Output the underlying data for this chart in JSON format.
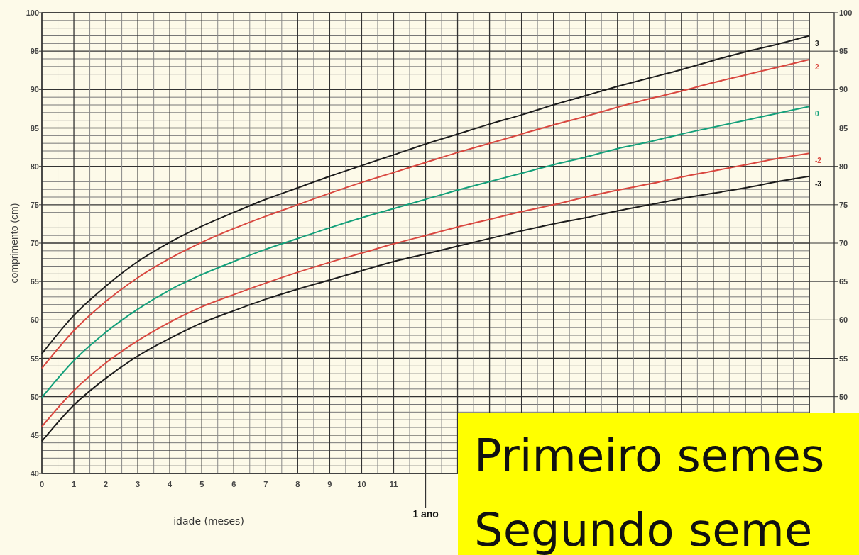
{
  "chart_data": {
    "type": "line",
    "xlabel": "idade (meses)",
    "ylabel": "comprimento (cm)",
    "x": [
      0,
      1,
      2,
      3,
      4,
      5,
      6,
      7,
      8,
      9,
      10,
      11,
      12,
      13,
      14,
      15,
      16,
      17,
      18,
      19,
      20,
      21,
      22,
      23,
      24
    ],
    "xlim": [
      0,
      24
    ],
    "xticks": [
      0,
      1,
      2,
      3,
      4,
      5,
      6,
      7,
      8,
      9,
      10,
      11
    ],
    "ref_lines": [
      {
        "axis": "x",
        "value": 12,
        "label": "1 ano"
      }
    ],
    "ylim": [
      40,
      100
    ],
    "yticks": [
      40,
      45,
      50,
      55,
      60,
      65,
      70,
      75,
      80,
      85,
      90,
      95,
      100
    ],
    "y2lim": [
      40,
      100
    ],
    "y2ticks": [
      50,
      55,
      60,
      65,
      70,
      75,
      80,
      85,
      90,
      95,
      100
    ],
    "grid": true,
    "marker": "none",
    "line_style": "solid",
    "series": [
      {
        "name": "3",
        "color": "#1c1c1c",
        "values": [
          55.6,
          60.6,
          64.4,
          67.6,
          70.1,
          72.2,
          74.0,
          75.7,
          77.2,
          78.7,
          80.1,
          81.5,
          82.9,
          84.2,
          85.5,
          86.7,
          88.0,
          89.2,
          90.4,
          91.5,
          92.6,
          93.8,
          94.9,
          95.9,
          97.0
        ]
      },
      {
        "name": "2",
        "color": "#d9473f",
        "values": [
          53.7,
          58.6,
          62.4,
          65.5,
          68.0,
          70.1,
          71.9,
          73.5,
          75.0,
          76.5,
          77.9,
          79.2,
          80.5,
          81.8,
          83.0,
          84.2,
          85.4,
          86.5,
          87.7,
          88.8,
          89.8,
          90.9,
          91.9,
          92.9,
          93.9
        ]
      },
      {
        "name": "0",
        "color": "#13a07a",
        "values": [
          49.9,
          54.7,
          58.4,
          61.4,
          63.9,
          65.9,
          67.6,
          69.2,
          70.6,
          72.0,
          73.3,
          74.5,
          75.7,
          76.9,
          78.0,
          79.1,
          80.2,
          81.2,
          82.3,
          83.2,
          84.2,
          85.1,
          86.0,
          86.9,
          87.8
        ]
      },
      {
        "name": "-2",
        "color": "#d9473f",
        "values": [
          46.1,
          50.8,
          54.4,
          57.3,
          59.7,
          61.7,
          63.3,
          64.8,
          66.2,
          67.5,
          68.7,
          69.9,
          71.0,
          72.1,
          73.1,
          74.1,
          75.0,
          76.0,
          76.9,
          77.7,
          78.6,
          79.4,
          80.2,
          81.0,
          81.7
        ]
      },
      {
        "name": "-3",
        "color": "#1c1c1c",
        "values": [
          44.2,
          48.9,
          52.4,
          55.3,
          57.6,
          59.6,
          61.2,
          62.7,
          64.0,
          65.2,
          66.4,
          67.6,
          68.6,
          69.6,
          70.6,
          71.6,
          72.5,
          73.3,
          74.2,
          75.0,
          75.8,
          76.5,
          77.2,
          78.0,
          78.7
        ]
      }
    ],
    "annotations": [
      "Primeiro semes",
      "Segundo seme"
    ]
  }
}
